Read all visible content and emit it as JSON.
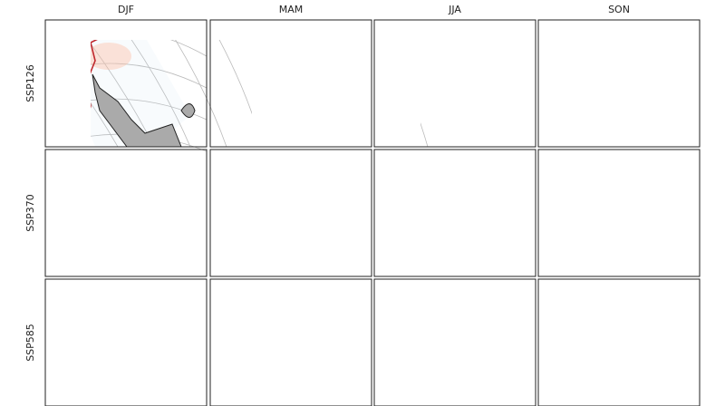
{
  "columns": [
    "DJF",
    "MAM",
    "JJA",
    "SON"
  ],
  "rows": [
    "SSP126",
    "SSP370",
    "SSP585"
  ]
}
